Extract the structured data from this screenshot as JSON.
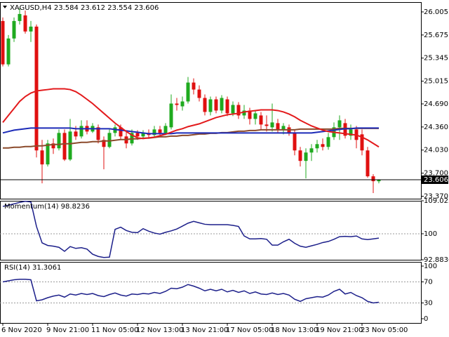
{
  "chart_data": [
    {
      "type": "candlestick",
      "title": "XAGUSD,H4  23.584 23.612 23.554 23.606",
      "categories": [
        "6 Nov 2020",
        null,
        null,
        null,
        null,
        null,
        null,
        null,
        "9 Nov 21:00",
        null,
        null,
        null,
        null,
        null,
        null,
        null,
        "11 Nov 05:00",
        null,
        null,
        null,
        null,
        null,
        null,
        null,
        "12 Nov 13:00",
        null,
        null,
        null,
        null,
        null,
        null,
        null,
        "13 Nov 21:00",
        null,
        null,
        null,
        null,
        null,
        null,
        null,
        "17 Nov 05:00",
        null,
        null,
        null,
        null,
        null,
        null,
        null,
        "18 Nov 13:00",
        null,
        null,
        null,
        null,
        null,
        null,
        null,
        "19 Nov 21:00",
        null,
        null,
        null,
        null,
        null,
        null,
        null,
        "23 Nov 05:00",
        null,
        null,
        null
      ],
      "open": [
        25.875,
        25.255,
        25.625,
        25.875,
        25.955,
        25.725,
        25.795,
        24.025,
        23.825,
        24.125,
        24.055,
        24.275,
        23.895,
        24.295,
        24.225,
        24.375,
        24.295,
        24.355,
        24.175,
        24.075,
        24.275,
        24.355,
        24.225,
        24.125,
        24.275,
        24.225,
        24.275,
        24.245,
        24.325,
        24.275,
        24.355,
        24.695,
        24.655,
        24.725,
        24.995,
        24.895,
        24.775,
        24.575,
        24.755,
        24.595,
        24.755,
        24.555,
        24.675,
        24.525,
        24.595,
        24.475,
        24.525,
        24.395,
        24.355,
        24.415,
        24.325,
        24.355,
        24.275,
        24.025,
        23.875,
        23.995,
        24.055,
        24.115,
        24.075,
        24.215,
        24.355,
        24.415,
        24.235,
        24.325,
        24.255,
        24.025,
        23.655,
        23.584
      ],
      "high": [
        25.925,
        25.675,
        25.925,
        26.055,
        26.025,
        25.875,
        25.825,
        24.175,
        24.175,
        24.195,
        24.325,
        24.325,
        24.475,
        24.375,
        24.455,
        24.455,
        24.415,
        24.395,
        24.225,
        24.325,
        24.395,
        24.395,
        24.295,
        24.325,
        24.315,
        24.315,
        24.325,
        24.375,
        24.375,
        24.415,
        24.825,
        24.775,
        24.795,
        25.075,
        25.055,
        24.955,
        24.825,
        24.795,
        24.795,
        24.815,
        24.795,
        24.725,
        24.715,
        24.675,
        24.635,
        24.595,
        24.575,
        24.525,
        24.695,
        24.475,
        24.415,
        24.395,
        24.325,
        24.075,
        24.055,
        24.115,
        24.175,
        24.195,
        24.275,
        24.425,
        24.525,
        24.475,
        24.395,
        24.375,
        24.325,
        24.075,
        23.685,
        23.612
      ],
      "low": [
        25.225,
        25.225,
        25.575,
        25.825,
        25.695,
        25.575,
        23.925,
        23.555,
        23.795,
        23.975,
        24.025,
        23.875,
        23.875,
        24.175,
        24.195,
        24.255,
        24.275,
        24.125,
        23.755,
        24.055,
        24.225,
        24.175,
        24.055,
        24.095,
        24.175,
        24.195,
        24.205,
        24.215,
        24.235,
        24.245,
        24.325,
        24.595,
        24.595,
        24.695,
        24.825,
        24.725,
        24.525,
        24.525,
        24.555,
        24.555,
        24.515,
        24.515,
        24.475,
        24.475,
        24.395,
        24.395,
        24.325,
        24.295,
        24.295,
        24.275,
        24.255,
        24.235,
        23.955,
        23.795,
        23.625,
        23.875,
        23.995,
        24.025,
        24.035,
        24.175,
        24.175,
        24.195,
        24.175,
        24.055,
        23.955,
        23.635,
        23.415,
        23.554
      ],
      "close": [
        25.255,
        25.625,
        25.875,
        25.975,
        25.725,
        25.795,
        24.025,
        23.825,
        24.125,
        24.055,
        24.275,
        23.895,
        24.295,
        24.225,
        24.375,
        24.295,
        24.375,
        24.175,
        24.075,
        24.275,
        24.355,
        24.225,
        24.125,
        24.275,
        24.225,
        24.275,
        24.245,
        24.325,
        24.275,
        24.375,
        24.695,
        24.675,
        24.725,
        24.995,
        24.895,
        24.775,
        24.575,
        24.755,
        24.595,
        24.775,
        24.555,
        24.675,
        24.525,
        24.595,
        24.475,
        24.555,
        24.395,
        24.375,
        24.425,
        24.325,
        24.375,
        24.275,
        24.025,
        23.875,
        23.995,
        24.055,
        24.115,
        24.075,
        24.215,
        24.355,
        24.455,
        24.235,
        24.325,
        24.175,
        24.025,
        23.655,
        23.585,
        23.606
      ],
      "up_color": "#1faa1f",
      "down_color": "#e01010",
      "overlays": [
        {
          "color": "#8b4a2b",
          "values": [
            24.06,
            24.06,
            24.07,
            24.07,
            24.08,
            24.08,
            24.09,
            24.09,
            24.1,
            24.11,
            24.11,
            24.12,
            24.12,
            24.13,
            24.14,
            24.14,
            24.15,
            24.15,
            24.16,
            24.16,
            24.17,
            24.18,
            24.18,
            24.19,
            24.19,
            24.2,
            24.2,
            24.21,
            24.22,
            24.22,
            24.23,
            24.23,
            24.24,
            24.24,
            24.25,
            24.26,
            24.26,
            24.27,
            24.27,
            24.28,
            24.28,
            24.29,
            24.3,
            24.3,
            24.31,
            24.31,
            24.32,
            24.32,
            24.32,
            24.32,
            24.32,
            24.32,
            24.32,
            24.33,
            24.33,
            24.33,
            24.33,
            24.33,
            24.33,
            24.33,
            24.34,
            24.34,
            24.34,
            24.34,
            24.34,
            24.34,
            24.34,
            24.34
          ]
        },
        {
          "color": "#1c2bb8",
          "values": [
            24.275,
            24.295,
            24.315,
            24.325,
            24.335,
            24.345,
            24.345,
            24.345,
            24.345,
            24.345,
            24.345,
            24.345,
            24.345,
            24.335,
            24.335,
            24.335,
            24.335,
            24.335,
            24.335,
            24.335,
            24.325,
            24.315,
            24.305,
            24.295,
            24.285,
            24.275,
            24.265,
            24.265,
            24.265,
            24.265,
            24.265,
            24.275,
            24.275,
            24.275,
            24.275,
            24.275,
            24.275,
            24.275,
            24.275,
            24.275,
            24.275,
            24.275,
            24.275,
            24.275,
            24.275,
            24.275,
            24.275,
            24.275,
            24.275,
            24.275,
            24.275,
            24.275,
            24.275,
            24.275,
            24.275,
            24.275,
            24.285,
            24.295,
            24.305,
            24.315,
            24.325,
            24.335,
            24.335,
            24.345,
            24.345,
            24.345,
            24.345,
            24.345
          ]
        },
        {
          "color": "#e31a1c",
          "values": [
            24.425,
            24.525,
            24.625,
            24.725,
            24.795,
            24.845,
            24.875,
            24.885,
            24.895,
            24.905,
            24.905,
            24.905,
            24.895,
            24.865,
            24.815,
            24.755,
            24.695,
            24.625,
            24.555,
            24.485,
            24.415,
            24.355,
            24.295,
            24.245,
            24.205,
            24.195,
            24.205,
            24.215,
            24.235,
            24.255,
            24.285,
            24.315,
            24.335,
            24.365,
            24.385,
            24.405,
            24.435,
            24.465,
            24.495,
            24.515,
            24.535,
            24.545,
            24.555,
            24.575,
            24.585,
            24.595,
            24.605,
            24.605,
            24.605,
            24.595,
            24.575,
            24.545,
            24.505,
            24.455,
            24.415,
            24.375,
            24.345,
            24.315,
            24.295,
            24.285,
            24.275,
            24.265,
            24.255,
            24.245,
            24.215,
            24.175,
            24.125,
            24.075
          ]
        }
      ],
      "price_line": 23.606,
      "ylim": [
        23.335,
        26.145
      ],
      "yticks": [
        26.005,
        25.675,
        25.345,
        25.015,
        {
          "value": 24.69,
          "label": "24.690"
        },
        {
          "value": 24.36,
          "label": "24.360"
        },
        {
          "value": 24.03,
          "label": "24.030"
        },
        {
          "value": 23.7,
          "label": "23.700"
        },
        {
          "value": 23.37,
          "label": "23.370"
        }
      ]
    },
    {
      "type": "line",
      "title": "Momentum(14) 98.8236",
      "color": "#1c1f8a",
      "values": [
        107.5,
        107.8,
        108.2,
        108.6,
        108.9,
        108.7,
        102.0,
        97.5,
        96.8,
        96.6,
        96.3,
        95.2,
        96.5,
        96.0,
        96.2,
        95.8,
        94.4,
        93.8,
        93.5,
        93.6,
        101.2,
        101.8,
        100.9,
        100.4,
        100.3,
        101.4,
        100.7,
        100.2,
        99.9,
        100.4,
        100.8,
        101.3,
        102.1,
        102.9,
        103.4,
        103.0,
        102.6,
        102.5,
        102.5,
        102.5,
        102.5,
        102.3,
        102.0,
        99.4,
        98.6,
        98.6,
        98.7,
        98.5,
        96.9,
        96.9,
        97.8,
        98.5,
        97.4,
        96.6,
        96.3,
        96.7,
        97.1,
        97.6,
        97.9,
        98.5,
        99.2,
        99.3,
        99.2,
        99.4,
        98.6,
        98.4,
        98.6,
        98.8236
      ],
      "levels": [
        100
      ],
      "ylim": [
        92.8836,
        109.0251
      ],
      "yticks": [
        109.0251,
        100,
        92.8836
      ]
    },
    {
      "type": "line",
      "title": "RSI(14) 31.3061",
      "color": "#1c1f8a",
      "values": [
        70,
        72,
        74,
        75,
        75,
        74,
        34,
        36,
        40,
        43,
        45,
        41,
        47,
        45,
        48,
        46,
        48,
        44,
        42,
        46,
        49,
        45,
        43,
        47,
        46,
        48,
        47,
        50,
        48,
        52,
        58,
        57,
        60,
        65,
        62,
        58,
        53,
        56,
        53,
        56,
        51,
        54,
        50,
        53,
        48,
        51,
        47,
        46,
        49,
        46,
        48,
        45,
        37,
        33,
        38,
        40,
        42,
        41,
        45,
        52,
        56,
        47,
        50,
        44,
        40,
        33,
        30,
        31.3061
      ],
      "levels": [
        70,
        30
      ],
      "ylim": [
        -8,
        108
      ],
      "yticks": [
        100,
        70,
        30,
        0
      ]
    }
  ]
}
